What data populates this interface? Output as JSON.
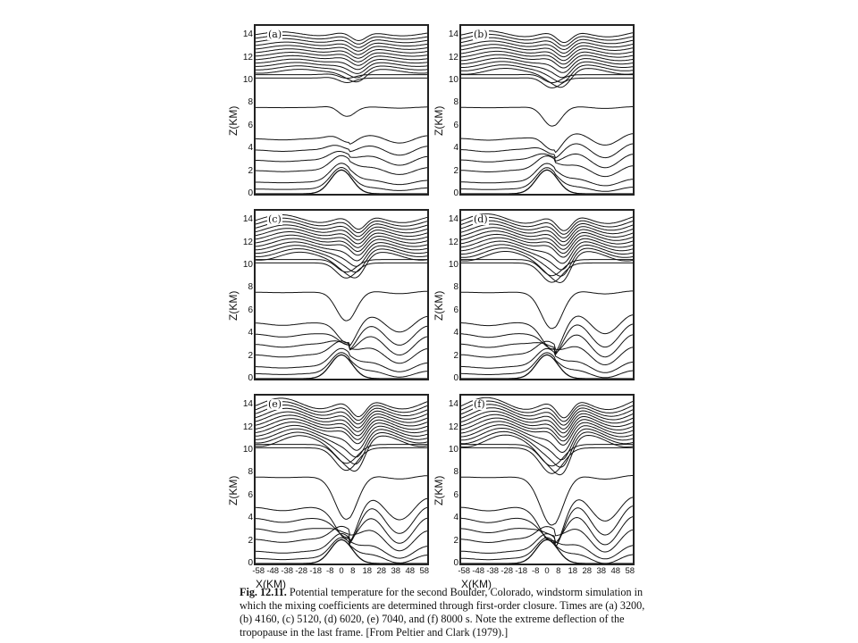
{
  "figure": {
    "y_axis_label": "Z(KM)",
    "y_ticks": [
      "0",
      "2",
      "4",
      "6",
      "8",
      "10",
      "12",
      "14"
    ],
    "x_axis_label": "X(KM)",
    "x_ticks": [
      "-58",
      "-48",
      "-38",
      "-28",
      "-18",
      "-8",
      "0",
      "8",
      "18",
      "28",
      "38",
      "48",
      "58"
    ],
    "panels": [
      {
        "label": "(a)",
        "stage": 0
      },
      {
        "label": "(b)",
        "stage": 0.25
      },
      {
        "label": "(c)",
        "stage": 0.5
      },
      {
        "label": "(d)",
        "stage": 0.7
      },
      {
        "label": "(e)",
        "stage": 0.85
      },
      {
        "label": "(f)",
        "stage": 1
      }
    ]
  },
  "caption": {
    "lead": "Fig. 12.11.",
    "body": " Potential temperature for the second Boulder, Colorado, windstorm simulation in which the mixing coefficients are determined through first-order closure. Times are (a) 3200, (b) 4160, (c) 5120, (d) 6020, (e) 7040, and (f) 8000 s. Note the extreme deflection of the tropopause in the last frame. [From Peltier and Clark (1979).]"
  }
}
